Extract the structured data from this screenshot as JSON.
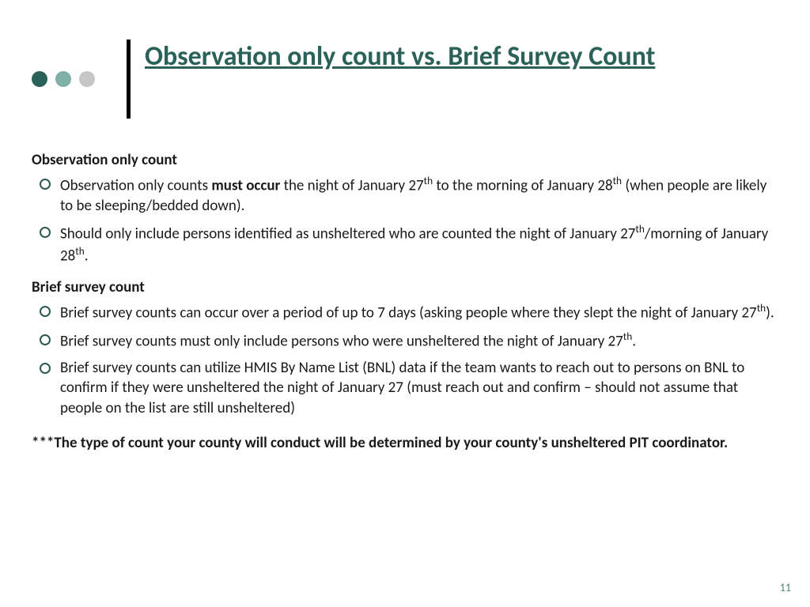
{
  "colors": {
    "title": "#2a6158",
    "dot1": "#2a6158",
    "dot2": "#7fb1a9",
    "dot3": "#c6c6c6",
    "bullet_ring": "#2a5a52",
    "pagenum": "#4a8078"
  },
  "title": "Observation only count vs. Brief Survey Count",
  "section1": {
    "heading": "Observation only count",
    "bullets": [
      "Observation only counts <b>must occur</b> the night of January 27<sup>th</sup> to the morning of January 28<sup>th</sup> (when people are likely to be sleeping/bedded down).",
      "Should only include persons identified as unsheltered who are counted the night of January 27<sup>th</sup>/morning of January 28<sup>th</sup>."
    ]
  },
  "section2": {
    "heading": "Brief survey count",
    "bullets": [
      "Brief survey counts can occur over a period of up to 7 days (asking people where they slept the night of January 27<sup>th</sup>).",
      "Brief survey counts must only include persons who were unsheltered the night of January 27<sup>th</sup>.",
      "Brief survey counts can utilize HMIS By Name List (BNL) data if the team wants to reach out to persons on BNL to confirm if they were unsheltered the night of January 27 (must reach out and confirm – should not assume that people on the list are still unsheltered)"
    ]
  },
  "footnote": "***The type of count your county will conduct will be determined by your county's unsheltered PIT coordinator.",
  "page_number": "11"
}
